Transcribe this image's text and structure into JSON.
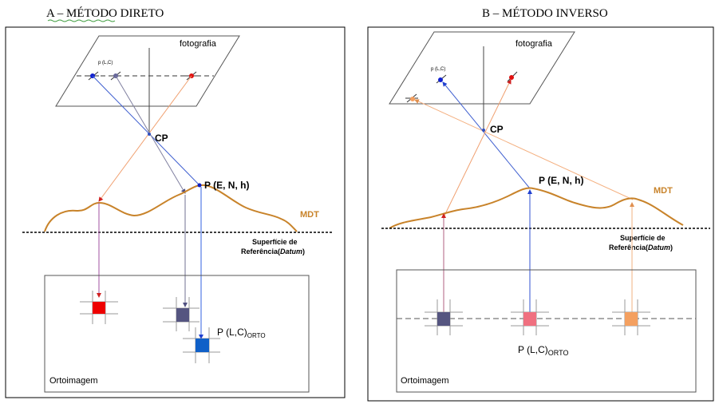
{
  "panel_a": {
    "title": "A – MÉTODO DIRETO",
    "photo_label": "fotografia",
    "pixel_label": "p (L,C)",
    "cp_label": "CP",
    "ground_point_label": "P (E, N, h)",
    "mdt_label": "MDT",
    "datum_label_1": "Superfície de",
    "datum_label_2_pre": "Referência(",
    "datum_label_2_em": "Datum",
    "datum_label_2_post": ")",
    "ortho_point_label": "P (L,C)",
    "ortho_point_sub": "ORTO",
    "ortho_label": "Ortoimagem"
  },
  "panel_b": {
    "title": "B – MÉTODO INVERSO",
    "photo_label": "fotografia",
    "pixel_label": "p (L,C)",
    "cp_label": "CP",
    "ground_point_label": "P (E, N, h)",
    "mdt_label": "MDT",
    "datum_label_1": "Superfície de",
    "datum_label_2_pre": "Referência(",
    "datum_label_2_em": "Datum",
    "datum_label_2_post": ")",
    "ortho_point_label": "P (L,C)",
    "ortho_point_sub": "ORTO",
    "ortho_label": "Ortoimagem"
  },
  "colors": {
    "terrain": "#c8832a",
    "red": "#ff0000",
    "blue_dark": "#0000cc",
    "gray_blue": "#4c4c80",
    "blue": "#1060c8",
    "pink": "#f06070",
    "orange": "#f4a060"
  }
}
